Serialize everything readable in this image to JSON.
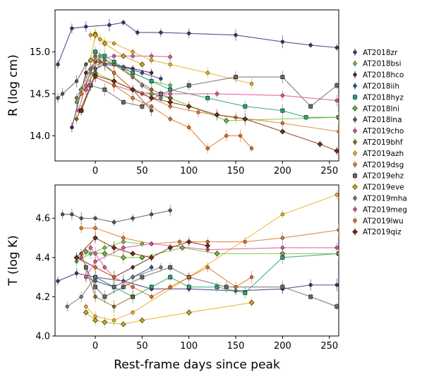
{
  "figure": {
    "xlabel": "Rest-frame days since peak"
  },
  "chart_data": [
    {
      "type": "line",
      "ylabel": "R (log cm)",
      "xlim": [
        -43,
        260
      ],
      "ylim": [
        13.7,
        15.5
      ],
      "xticks": [
        0,
        50,
        100,
        150,
        200,
        250
      ],
      "yticks": [
        14.0,
        14.5,
        15.0
      ],
      "ytick_labels": [
        "14.0",
        "14.5",
        "15.0"
      ],
      "series": [
        {
          "name": "AT2018zr",
          "color": "#3b3570",
          "marker": "circle",
          "x": [
            -40,
            -25,
            -10,
            15,
            30,
            45,
            70,
            100,
            150,
            200,
            230,
            258
          ],
          "y": [
            14.85,
            15.28,
            15.3,
            15.32,
            15.35,
            15.23,
            15.23,
            15.22,
            15.2,
            15.12,
            15.08,
            15.05
          ]
        },
        {
          "name": "AT2018bsi",
          "color": "#6bbf3f",
          "marker": "circle",
          "x": [
            -20,
            -5,
            5,
            20,
            40,
            60,
            80
          ],
          "y": [
            14.4,
            14.75,
            14.95,
            14.85,
            14.75,
            14.65,
            14.6
          ]
        },
        {
          "name": "AT2018hco",
          "color": "#5a1e3a",
          "marker": "circle",
          "x": [
            -25,
            -10,
            0,
            20,
            40,
            60
          ],
          "y": [
            14.1,
            14.75,
            14.88,
            14.85,
            14.8,
            14.75
          ]
        },
        {
          "name": "AT2018iih",
          "color": "#3a4a8a",
          "marker": "circle",
          "x": [
            -10,
            0,
            10,
            30,
            50,
            70
          ],
          "y": [
            14.55,
            14.8,
            14.85,
            14.82,
            14.75,
            14.68
          ]
        },
        {
          "name": "AT2018hyz",
          "color": "#2aa37a",
          "marker": "square",
          "x": [
            0,
            10,
            20,
            40,
            60,
            80,
            120,
            160,
            200,
            225,
            260
          ],
          "y": [
            15.0,
            14.95,
            14.88,
            14.75,
            14.65,
            14.55,
            14.45,
            14.35,
            14.3,
            14.22,
            14.22
          ]
        },
        {
          "name": "AT2018lni",
          "color": "#7bbf3a",
          "marker": "diamond",
          "x": [
            -15,
            0,
            20,
            40,
            60,
            80,
            140,
            260
          ],
          "y": [
            14.55,
            14.75,
            14.65,
            14.55,
            14.5,
            14.45,
            14.18,
            14.22
          ]
        },
        {
          "name": "AT2018lna",
          "color": "#555555",
          "marker": "circle",
          "x": [
            -40,
            -35,
            -20,
            -10,
            0,
            20,
            40,
            60
          ],
          "y": [
            14.45,
            14.5,
            14.65,
            14.85,
            14.95,
            14.75,
            14.55,
            14.3
          ]
        },
        {
          "name": "AT2019cho",
          "color": "#d05a9a",
          "marker": "circle",
          "x": [
            -18,
            -10,
            0,
            20,
            40,
            60,
            80
          ],
          "y": [
            14.3,
            14.6,
            14.9,
            14.95,
            14.95,
            14.95,
            14.94
          ]
        },
        {
          "name": "AT2019bhf",
          "color": "#8a6a1a",
          "marker": "circle",
          "x": [
            -20,
            -5,
            5,
            20,
            40,
            60,
            80
          ],
          "y": [
            14.2,
            14.6,
            14.88,
            14.85,
            14.7,
            14.55,
            14.45
          ]
        },
        {
          "name": "AT2019azh",
          "color": "#e8b020",
          "marker": "circle",
          "x": [
            -5,
            0,
            5,
            20,
            40,
            60,
            80,
            120,
            167
          ],
          "y": [
            15.2,
            15.22,
            15.15,
            15.1,
            15.0,
            14.9,
            14.85,
            14.75,
            14.62
          ]
        },
        {
          "name": "AT2019dsg",
          "color": "#e07a2a",
          "marker": "circle",
          "x": [
            -15,
            0,
            20,
            40,
            60,
            80,
            110,
            150,
            200,
            260
          ],
          "y": [
            14.5,
            14.9,
            14.75,
            14.55,
            14.45,
            14.35,
            14.28,
            14.22,
            14.15,
            14.05
          ]
        },
        {
          "name": "AT2019ehz",
          "color": "#6a6a6a",
          "marker": "square",
          "x": [
            -15,
            -5,
            10,
            30,
            50,
            70,
            100,
            150,
            200,
            230,
            258
          ],
          "y": [
            14.3,
            14.6,
            14.55,
            14.4,
            14.35,
            14.5,
            14.6,
            14.7,
            14.7,
            14.35,
            14.6
          ]
        },
        {
          "name": "AT2019eve",
          "color": "#d4b010",
          "marker": "diamond",
          "x": [
            -5,
            0,
            10,
            30,
            50
          ],
          "y": [
            14.9,
            15.2,
            15.1,
            14.95,
            14.85
          ]
        },
        {
          "name": "AT2019mha",
          "color": "#777777",
          "marker": "circle",
          "x": [
            -20,
            -5,
            10,
            30,
            50,
            70
          ],
          "y": [
            14.45,
            14.8,
            14.9,
            14.8,
            14.6,
            14.45
          ]
        },
        {
          "name": "AT2019meg",
          "color": "#e0509a",
          "marker": "circle",
          "x": [
            -10,
            0,
            20,
            50,
            80,
            130,
            200,
            258
          ],
          "y": [
            14.55,
            14.7,
            14.6,
            14.5,
            14.5,
            14.5,
            14.48,
            14.42
          ]
        },
        {
          "name": "AT2019lwu",
          "color": "#e07020",
          "marker": "circle",
          "x": [
            0,
            20,
            40,
            60,
            80,
            100,
            120,
            140,
            155,
            167
          ],
          "y": [
            14.7,
            14.6,
            14.45,
            14.35,
            14.2,
            14.1,
            13.85,
            14.0,
            14.0,
            13.85
          ]
        },
        {
          "name": "AT2019qiz",
          "color": "#7a3010",
          "marker": "diamond",
          "x": [
            -15,
            0,
            20,
            40,
            60,
            80,
            100,
            130,
            160,
            200,
            240,
            258
          ],
          "y": [
            14.3,
            14.72,
            14.65,
            14.55,
            14.45,
            14.4,
            14.35,
            14.25,
            14.2,
            14.05,
            13.9,
            13.82
          ]
        }
      ]
    },
    {
      "type": "line",
      "ylabel": "T (log K)",
      "xlim": [
        -43,
        260
      ],
      "ylim": [
        4.0,
        4.77
      ],
      "xticks": [
        0,
        50,
        100,
        150,
        200,
        250
      ],
      "yticks": [
        4.0,
        4.2,
        4.4,
        4.6
      ],
      "ytick_labels": [
        "4.0",
        "4.2",
        "4.4",
        "4.6"
      ],
      "series": [
        {
          "name": "AT2018zr",
          "color": "#3b3570",
          "marker": "circle",
          "x": [
            -40,
            -20,
            0,
            30,
            60,
            100,
            150,
            200,
            230,
            258
          ],
          "y": [
            4.28,
            4.32,
            4.3,
            4.28,
            4.24,
            4.24,
            4.23,
            4.24,
            4.26,
            4.26
          ]
        },
        {
          "name": "AT2018bsi",
          "color": "#6bbf3f",
          "marker": "circle",
          "x": [
            -20,
            -5,
            10,
            30,
            50
          ],
          "y": [
            4.38,
            4.42,
            4.45,
            4.48,
            4.47
          ]
        },
        {
          "name": "AT2018hco",
          "color": "#5a1e3a",
          "marker": "circle",
          "x": [
            -20,
            0,
            20,
            40,
            60
          ],
          "y": [
            4.4,
            4.35,
            4.3,
            4.35,
            4.4
          ]
        },
        {
          "name": "AT2018iih",
          "color": "#3a4a8a",
          "marker": "circle",
          "x": [
            -10,
            0,
            20,
            40,
            60
          ],
          "y": [
            4.3,
            4.28,
            4.25,
            4.3,
            4.35
          ]
        },
        {
          "name": "AT2018hyz",
          "color": "#2aa37a",
          "marker": "square",
          "x": [
            0,
            20,
            40,
            60,
            80,
            100,
            130,
            160,
            200,
            260
          ],
          "y": [
            4.3,
            4.25,
            4.2,
            4.25,
            4.3,
            4.25,
            4.25,
            4.22,
            4.4,
            4.42
          ]
        },
        {
          "name": "AT2018lni",
          "color": "#7bbf3a",
          "marker": "diamond",
          "x": [
            -10,
            10,
            30,
            50,
            93,
            130,
            200,
            260
          ],
          "y": [
            4.43,
            4.42,
            4.4,
            4.4,
            4.45,
            4.42,
            4.42,
            4.42
          ]
        },
        {
          "name": "AT2018lna",
          "color": "#555555",
          "marker": "circle",
          "x": [
            -35,
            -25,
            -15,
            0,
            20,
            40,
            60,
            80
          ],
          "y": [
            4.62,
            4.62,
            4.6,
            4.6,
            4.58,
            4.6,
            4.62,
            4.64
          ]
        },
        {
          "name": "AT2019cho",
          "color": "#d05a9a",
          "marker": "circle",
          "x": [
            -15,
            -5,
            0,
            10,
            20
          ],
          "y": [
            4.4,
            4.45,
            4.42,
            4.35,
            4.3
          ]
        },
        {
          "name": "AT2019bhf",
          "color": "#8a6a1a",
          "marker": "circle",
          "x": [
            -15,
            0,
            20,
            40
          ],
          "y": [
            4.42,
            4.2,
            4.15,
            4.2
          ]
        },
        {
          "name": "AT2019azh",
          "color": "#e8b020",
          "marker": "circle",
          "x": [
            -10,
            0,
            20,
            40,
            100,
            200,
            258
          ],
          "y": [
            4.15,
            4.1,
            4.08,
            4.12,
            4.3,
            4.62,
            4.72
          ]
        },
        {
          "name": "AT2019dsg",
          "color": "#e07a2a",
          "marker": "circle",
          "x": [
            -15,
            0,
            30,
            60,
            90,
            120,
            160,
            200,
            260
          ],
          "y": [
            4.55,
            4.55,
            4.5,
            4.47,
            4.48,
            4.48,
            4.48,
            4.5,
            4.54
          ]
        },
        {
          "name": "AT2019ehz",
          "color": "#6a6a6a",
          "marker": "square",
          "x": [
            -10,
            0,
            10,
            30,
            50,
            80,
            100,
            140,
            200,
            230,
            258
          ],
          "y": [
            4.35,
            4.25,
            4.2,
            4.25,
            4.3,
            4.35,
            4.3,
            4.25,
            4.25,
            4.2,
            4.15
          ]
        },
        {
          "name": "AT2019eve",
          "color": "#d4b010",
          "marker": "diamond",
          "x": [
            -10,
            0,
            10,
            30,
            50,
            100,
            167
          ],
          "y": [
            4.12,
            4.08,
            4.07,
            4.06,
            4.08,
            4.12,
            4.17
          ]
        },
        {
          "name": "AT2019mha",
          "color": "#777777",
          "marker": "circle",
          "x": [
            -30,
            -15,
            0,
            20,
            40,
            70
          ],
          "y": [
            4.15,
            4.2,
            4.3,
            4.25,
            4.3,
            4.35
          ]
        },
        {
          "name": "AT2019meg",
          "color": "#e0509a",
          "marker": "circle",
          "x": [
            -10,
            0,
            30,
            60,
            120,
            200,
            258
          ],
          "y": [
            4.3,
            4.38,
            4.45,
            4.47,
            4.44,
            4.45,
            4.45
          ]
        },
        {
          "name": "AT2019lwu",
          "color": "#e07020",
          "marker": "circle",
          "x": [
            0,
            20,
            40,
            60,
            80,
            100,
            120,
            150,
            167
          ],
          "y": [
            4.35,
            4.3,
            4.25,
            4.2,
            4.25,
            4.3,
            4.35,
            4.25,
            4.3
          ]
        },
        {
          "name": "AT2019qiz",
          "color": "#7a3010",
          "marker": "diamond",
          "x": [
            -20,
            0,
            20,
            40,
            60,
            80,
            100,
            120
          ],
          "y": [
            4.4,
            4.5,
            4.45,
            4.42,
            4.4,
            4.45,
            4.48,
            4.46
          ]
        }
      ]
    }
  ]
}
